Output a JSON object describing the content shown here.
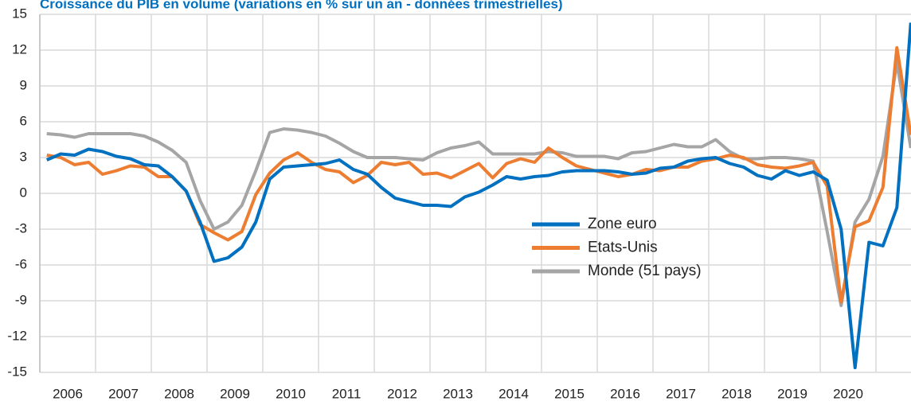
{
  "chart_data": {
    "type": "line",
    "title": "Croissance du PIB en volume (variations en % sur un an - données trimestrielles)",
    "categories": [
      "2006",
      null,
      null,
      null,
      "2007",
      null,
      null,
      null,
      "2008",
      null,
      null,
      null,
      "2009",
      null,
      null,
      null,
      "2010",
      null,
      null,
      null,
      "2011",
      null,
      null,
      null,
      "2012",
      null,
      null,
      null,
      "2013",
      null,
      null,
      null,
      "2014",
      null,
      null,
      null,
      "2015",
      null,
      null,
      null,
      "2016",
      null,
      null,
      null,
      "2017",
      null,
      null,
      null,
      "2018",
      null,
      null,
      null,
      "2019",
      null,
      null,
      null,
      "2020",
      null,
      null,
      null,
      null,
      null,
      null
    ],
    "series": [
      {
        "name": "Zone euro",
        "color": "#0070c0",
        "values": [
          2.8,
          3.3,
          3.2,
          3.7,
          3.5,
          3.1,
          2.9,
          2.4,
          2.3,
          1.4,
          0.2,
          -2.4,
          -5.7,
          -5.4,
          -4.5,
          -2.4,
          1.2,
          2.2,
          2.3,
          2.4,
          2.5,
          2.8,
          2.0,
          1.6,
          0.5,
          -0.4,
          -0.7,
          -1.0,
          -1.0,
          -1.1,
          -0.3,
          0.1,
          0.7,
          1.4,
          1.2,
          1.4,
          1.5,
          1.8,
          1.9,
          1.9,
          1.9,
          1.8,
          1.6,
          1.7,
          2.1,
          2.2,
          2.7,
          2.9,
          3.0,
          2.5,
          2.2,
          1.5,
          1.2,
          1.9,
          1.5,
          1.8,
          1.1,
          -3.0,
          -14.6,
          -4.1,
          -4.4,
          -1.2,
          14.3
        ]
      },
      {
        "name": "Etats-Unis",
        "color": "#ed7d31",
        "values": [
          3.2,
          3.0,
          2.4,
          2.6,
          1.6,
          1.9,
          2.3,
          2.2,
          1.4,
          1.4,
          0.2,
          -2.6,
          -3.3,
          -3.9,
          -3.2,
          -0.1,
          1.7,
          2.8,
          3.4,
          2.6,
          2.0,
          1.8,
          0.9,
          1.5,
          2.6,
          2.4,
          2.6,
          1.6,
          1.7,
          1.3,
          1.9,
          2.5,
          1.3,
          2.5,
          2.9,
          2.6,
          3.8,
          3.0,
          2.3,
          2.0,
          1.7,
          1.4,
          1.6,
          2.0,
          1.9,
          2.2,
          2.2,
          2.7,
          2.9,
          3.2,
          3.0,
          2.4,
          2.2,
          2.1,
          2.3,
          2.6,
          0.6,
          -9.1,
          -2.8,
          -2.3,
          0.5,
          12.2,
          4.9
        ]
      },
      {
        "name": "Monde (51 pays)",
        "color": "#a5a5a5",
        "values": [
          5.0,
          4.9,
          4.7,
          5.0,
          5.0,
          5.0,
          5.0,
          4.8,
          4.3,
          3.6,
          2.6,
          -0.6,
          -3.0,
          -2.4,
          -1.0,
          1.9,
          5.1,
          5.4,
          5.3,
          5.1,
          4.8,
          4.2,
          3.5,
          3.0,
          3.0,
          3.0,
          2.9,
          2.8,
          3.4,
          3.8,
          4.0,
          4.3,
          3.3,
          3.3,
          3.3,
          3.3,
          3.5,
          3.4,
          3.1,
          3.1,
          3.1,
          2.9,
          3.4,
          3.5,
          3.8,
          4.1,
          3.9,
          3.9,
          4.5,
          3.5,
          2.9,
          2.9,
          3.0,
          3.0,
          2.9,
          2.7,
          -3.2,
          -9.4,
          -2.4,
          -0.5,
          3.1,
          11.0,
          3.8
        ]
      }
    ],
    "ylim": [
      -15,
      15
    ],
    "yticks": [
      -15,
      -12,
      -9,
      -6,
      -3,
      0,
      3,
      6,
      9,
      12,
      15
    ],
    "grid": true
  }
}
